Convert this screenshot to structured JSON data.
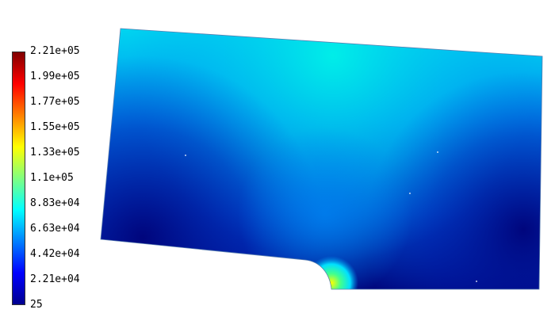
{
  "colorbar": {
    "tick_labels": [
      "2.21e+05",
      "1.99e+05",
      "1.77e+05",
      "1.55e+05",
      "1.33e+05",
      "1.1e+05",
      "8.83e+04",
      "6.63e+04",
      "4.42e+04",
      "2.21e+04",
      "25"
    ],
    "min": 25,
    "max": 221000,
    "colormap": [
      "#00008f",
      "#0000ff",
      "#0080ff",
      "#00ffff",
      "#80ff80",
      "#ffff00",
      "#ff8000",
      "#ff0000",
      "#800000"
    ]
  },
  "plot": {
    "colors": {
      "low": "#00037a",
      "mid_low": "#0048c8",
      "mid": "#0090f0",
      "high": "#00d8f0",
      "hotspot": [
        "#ffff00",
        "#40ff90",
        "#00e0ff"
      ]
    }
  }
}
